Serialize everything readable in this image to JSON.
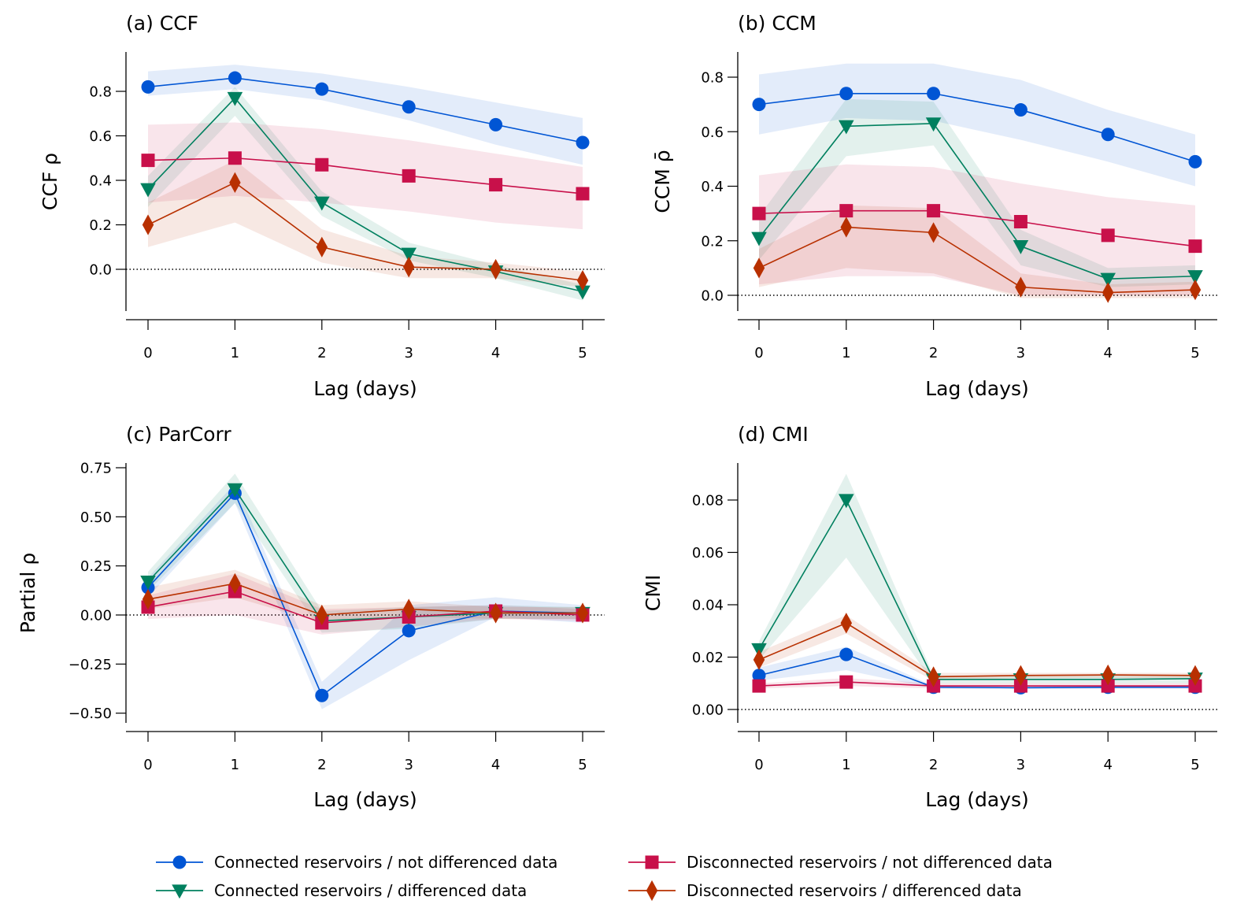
{
  "figure": {
    "legend": [
      {
        "key": "conn_nd",
        "label": "Connected reservoirs / not differenced data",
        "marker": "circle",
        "color": "#0055d4"
      },
      {
        "key": "disc_nd",
        "label": "Disconnected reservoirs / not differenced data",
        "marker": "square",
        "color": "#c8104a"
      },
      {
        "key": "conn_d",
        "label": "Connected reservoirs / differenced data",
        "marker": "triangle-down",
        "color": "#00805f"
      },
      {
        "key": "disc_d",
        "label": "Disconnected reservoirs / differenced data",
        "marker": "diamond",
        "color": "#b83000"
      }
    ]
  },
  "chart_data": [
    {
      "type": "line",
      "title": "(a) CCF",
      "xlabel": "Lag (days)",
      "ylabel": "CCF ρ",
      "x": [
        0,
        1,
        2,
        3,
        4,
        5
      ],
      "xticks": [
        "0",
        "1",
        "2",
        "3",
        "4",
        "5"
      ],
      "ylim": [
        -0.2,
        0.97
      ],
      "yticks": [
        0.0,
        0.2,
        0.4,
        0.6,
        0.8
      ],
      "ytick_labels": [
        "0.0",
        "0.2",
        "0.4",
        "0.6",
        "0.8"
      ],
      "reference_line": 0,
      "series": [
        {
          "key": "conn_nd",
          "name": "Connected reservoirs / not differenced data",
          "values": [
            0.82,
            0.86,
            0.81,
            0.73,
            0.65,
            0.57
          ],
          "lower": [
            0.78,
            0.81,
            0.76,
            0.67,
            0.56,
            0.47
          ],
          "upper": [
            0.89,
            0.92,
            0.88,
            0.82,
            0.75,
            0.68
          ]
        },
        {
          "key": "conn_d",
          "name": "Connected reservoirs / differenced data",
          "values": [
            0.36,
            0.77,
            0.3,
            0.07,
            -0.01,
            -0.1
          ],
          "lower": [
            0.28,
            0.69,
            0.24,
            0.04,
            -0.04,
            -0.14
          ],
          "upper": [
            0.42,
            0.82,
            0.35,
            0.12,
            0.02,
            -0.07
          ]
        },
        {
          "key": "disc_nd",
          "name": "Disconnected reservoirs / not differenced data",
          "values": [
            0.49,
            0.5,
            0.47,
            0.42,
            0.38,
            0.34
          ],
          "lower": [
            0.3,
            0.33,
            0.3,
            0.26,
            0.21,
            0.18
          ],
          "upper": [
            0.65,
            0.66,
            0.63,
            0.58,
            0.52,
            0.46
          ]
        },
        {
          "key": "disc_d",
          "name": "Disconnected reservoirs / differenced data",
          "values": [
            0.2,
            0.39,
            0.1,
            0.01,
            0.0,
            -0.05
          ],
          "lower": [
            0.1,
            0.21,
            0.03,
            -0.04,
            -0.04,
            -0.08
          ],
          "upper": [
            0.3,
            0.49,
            0.18,
            0.06,
            0.03,
            -0.01
          ]
        }
      ]
    },
    {
      "type": "line",
      "title": "(b) CCM",
      "xlabel": "Lag (days)",
      "ylabel": "CCM ρ̄",
      "x": [
        0,
        1,
        2,
        3,
        4,
        5
      ],
      "xticks": [
        "0",
        "1",
        "2",
        "3",
        "4",
        "5"
      ],
      "ylim": [
        -0.06,
        0.89
      ],
      "yticks": [
        0.0,
        0.2,
        0.4,
        0.6,
        0.8
      ],
      "ytick_labels": [
        "0.0",
        "0.2",
        "0.4",
        "0.6",
        "0.8"
      ],
      "reference_line": 0,
      "series": [
        {
          "key": "conn_nd",
          "name": "Connected reservoirs / not differenced data",
          "values": [
            0.7,
            0.74,
            0.74,
            0.68,
            0.59,
            0.49
          ],
          "lower": [
            0.59,
            0.65,
            0.64,
            0.57,
            0.49,
            0.4
          ],
          "upper": [
            0.81,
            0.85,
            0.85,
            0.79,
            0.68,
            0.59
          ]
        },
        {
          "key": "conn_d",
          "name": "Connected reservoirs / differenced data",
          "values": [
            0.21,
            0.62,
            0.63,
            0.18,
            0.06,
            0.07
          ],
          "lower": [
            0.13,
            0.51,
            0.55,
            0.11,
            0.03,
            0.04
          ],
          "upper": [
            0.29,
            0.72,
            0.71,
            0.24,
            0.1,
            0.11
          ]
        },
        {
          "key": "disc_nd",
          "name": "Disconnected reservoirs / not differenced data",
          "values": [
            0.3,
            0.31,
            0.31,
            0.27,
            0.22,
            0.18
          ],
          "lower": [
            0.04,
            0.07,
            0.07,
            0.0,
            0.0,
            0.0
          ],
          "upper": [
            0.44,
            0.48,
            0.47,
            0.41,
            0.36,
            0.33
          ]
        },
        {
          "key": "disc_d",
          "name": "Disconnected reservoirs / differenced data",
          "values": [
            0.1,
            0.25,
            0.23,
            0.03,
            0.01,
            0.02
          ],
          "lower": [
            0.03,
            0.1,
            0.08,
            -0.01,
            -0.01,
            -0.01
          ],
          "upper": [
            0.17,
            0.33,
            0.32,
            0.08,
            0.04,
            0.05
          ]
        }
      ]
    },
    {
      "type": "line",
      "title": "(c) ParCorr",
      "xlabel": "Lag (days)",
      "ylabel": "Partial ρ",
      "x": [
        0,
        1,
        2,
        3,
        4,
        5
      ],
      "xticks": [
        "0",
        "1",
        "2",
        "3",
        "4",
        "5"
      ],
      "ylim": [
        -0.54,
        0.78
      ],
      "yticks": [
        -0.5,
        -0.25,
        0.0,
        0.25,
        0.5,
        0.75
      ],
      "ytick_labels": [
        "−0.50",
        "−0.25",
        "0.00",
        "0.25",
        "0.50",
        "0.75"
      ],
      "reference_line": 0,
      "series": [
        {
          "key": "conn_nd",
          "name": "Connected reservoirs / not differenced data",
          "values": [
            0.14,
            0.62,
            -0.41,
            -0.08,
            0.02,
            0.01
          ],
          "lower": [
            0.09,
            0.57,
            -0.48,
            -0.23,
            -0.01,
            -0.04
          ],
          "upper": [
            0.19,
            0.67,
            -0.34,
            0.05,
            0.09,
            0.05
          ]
        },
        {
          "key": "conn_d",
          "name": "Connected reservoirs / differenced data",
          "values": [
            0.17,
            0.64,
            -0.03,
            -0.01,
            0.01,
            0.01
          ],
          "lower": [
            0.12,
            0.57,
            -0.09,
            -0.07,
            -0.02,
            -0.02
          ],
          "upper": [
            0.22,
            0.72,
            0.02,
            0.04,
            0.05,
            0.04
          ]
        },
        {
          "key": "disc_nd",
          "name": "Disconnected reservoirs / not differenced data",
          "values": [
            0.04,
            0.12,
            -0.04,
            -0.01,
            0.02,
            0.0
          ],
          "lower": [
            -0.02,
            0.0,
            -0.1,
            -0.06,
            -0.02,
            -0.03
          ],
          "upper": [
            0.1,
            0.21,
            0.03,
            0.04,
            0.05,
            0.03
          ]
        },
        {
          "key": "disc_d",
          "name": "Disconnected reservoirs / differenced data",
          "values": [
            0.08,
            0.16,
            0.0,
            0.03,
            0.01,
            0.01
          ],
          "lower": [
            0.03,
            0.09,
            -0.04,
            -0.01,
            -0.02,
            -0.02
          ],
          "upper": [
            0.14,
            0.23,
            0.05,
            0.07,
            0.04,
            0.04
          ]
        }
      ]
    },
    {
      "type": "line",
      "title": "(d) CMI",
      "xlabel": "Lag (days)",
      "ylabel": "CMI",
      "x": [
        0,
        1,
        2,
        3,
        4,
        5
      ],
      "xticks": [
        "0",
        "1",
        "2",
        "3",
        "4",
        "5"
      ],
      "ylim": [
        -0.0045,
        0.094
      ],
      "yticks": [
        0.0,
        0.02,
        0.04,
        0.06,
        0.08
      ],
      "ytick_labels": [
        "0.00",
        "0.02",
        "0.04",
        "0.06",
        "0.08"
      ],
      "reference_line": 0,
      "series": [
        {
          "key": "conn_nd",
          "name": "Connected reservoirs / not differenced data",
          "values": [
            0.013,
            0.021,
            0.0085,
            0.0083,
            0.0085,
            0.0085
          ],
          "lower": [
            0.011,
            0.015,
            0.008,
            0.008,
            0.008,
            0.008
          ],
          "upper": [
            0.016,
            0.024,
            0.009,
            0.009,
            0.009,
            0.009
          ]
        },
        {
          "key": "conn_d",
          "name": "Connected reservoirs / differenced data",
          "values": [
            0.023,
            0.08,
            0.0115,
            0.0115,
            0.0115,
            0.0118
          ],
          "lower": [
            0.019,
            0.058,
            0.01,
            0.01,
            0.01,
            0.01
          ],
          "upper": [
            0.026,
            0.09,
            0.013,
            0.013,
            0.013,
            0.013
          ]
        },
        {
          "key": "disc_nd",
          "name": "Disconnected reservoirs / not differenced data",
          "values": [
            0.009,
            0.0105,
            0.009,
            0.009,
            0.009,
            0.009
          ],
          "lower": [
            0.008,
            0.009,
            0.008,
            0.008,
            0.008,
            0.008
          ],
          "upper": [
            0.01,
            0.012,
            0.01,
            0.01,
            0.01,
            0.01
          ]
        },
        {
          "key": "disc_d",
          "name": "Disconnected reservoirs / differenced data",
          "values": [
            0.019,
            0.033,
            0.0125,
            0.013,
            0.0132,
            0.013
          ],
          "lower": [
            0.016,
            0.029,
            0.011,
            0.012,
            0.012,
            0.012
          ],
          "upper": [
            0.022,
            0.036,
            0.014,
            0.014,
            0.014,
            0.014
          ]
        }
      ]
    }
  ]
}
